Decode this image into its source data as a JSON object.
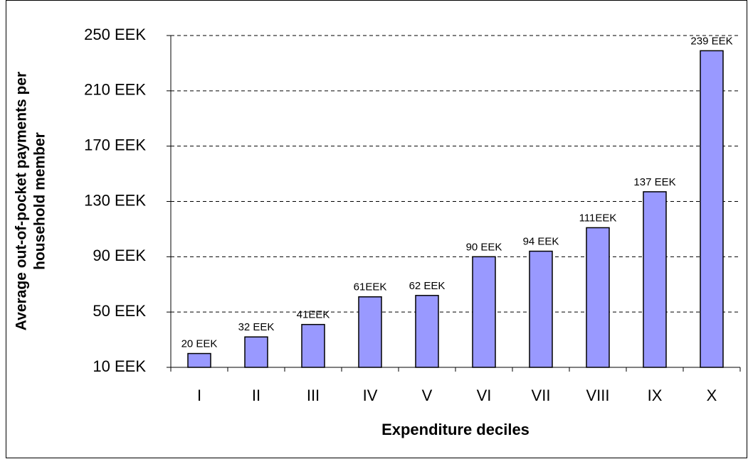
{
  "chart_data": {
    "type": "bar",
    "categories": [
      "I",
      "II",
      "III",
      "IV",
      "V",
      "VI",
      "VII",
      "VIII",
      "IX",
      "X"
    ],
    "values": [
      20,
      32,
      41,
      61,
      62,
      90,
      94,
      111,
      137,
      239
    ],
    "value_labels": [
      "20 EEK",
      "32 EEK",
      "41EEK",
      "61EEK",
      "62 EEK",
      "90 EEK",
      "94 EEK",
      "111EEK",
      "137 EEK",
      "239 EEK"
    ],
    "color": "#9999ff",
    "ylim": [
      10,
      250
    ],
    "yticks": [
      {
        "value": 10,
        "label": "10 EEK"
      },
      {
        "value": 50,
        "label": "50 EEK"
      },
      {
        "value": 90,
        "label": "90 EEK"
      },
      {
        "value": 130,
        "label": "130 EEK"
      },
      {
        "value": 170,
        "label": "170 EEK"
      },
      {
        "value": 210,
        "label": "210 EEK"
      },
      {
        "value": 250,
        "label": "250 EEK"
      }
    ],
    "ylabel": [
      "Average out-of-pocket payments per",
      "household member"
    ],
    "xlabel": "Expenditure deciles",
    "grid": true
  }
}
